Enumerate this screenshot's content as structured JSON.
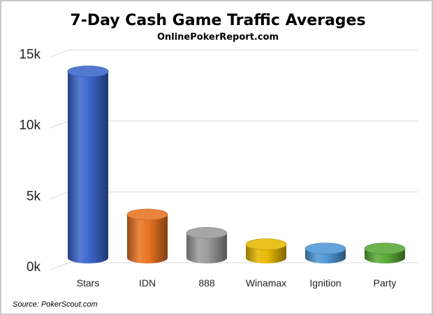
{
  "chart_data": {
    "type": "bar",
    "title": "7-Day Cash Game Traffic Averages",
    "subtitle": "OnlinePokerReport.com",
    "categories": [
      "Stars",
      "IDN",
      "888",
      "Winamax",
      "Ignition",
      "Party"
    ],
    "values": [
      13500,
      3400,
      2100,
      1300,
      1000,
      1000
    ],
    "colors": [
      "#3a66cc",
      "#e67321",
      "#9a9a9a",
      "#e6b800",
      "#4e97d6",
      "#5aa838"
    ],
    "ylim": [
      0,
      15000
    ],
    "yticks": [
      {
        "value": 0,
        "label": "0k"
      },
      {
        "value": 5000,
        "label": "5k"
      },
      {
        "value": 10000,
        "label": "10k"
      },
      {
        "value": 15000,
        "label": "15k"
      }
    ],
    "grid": true,
    "legend": "none",
    "source": "Source: PokerScout.com"
  }
}
